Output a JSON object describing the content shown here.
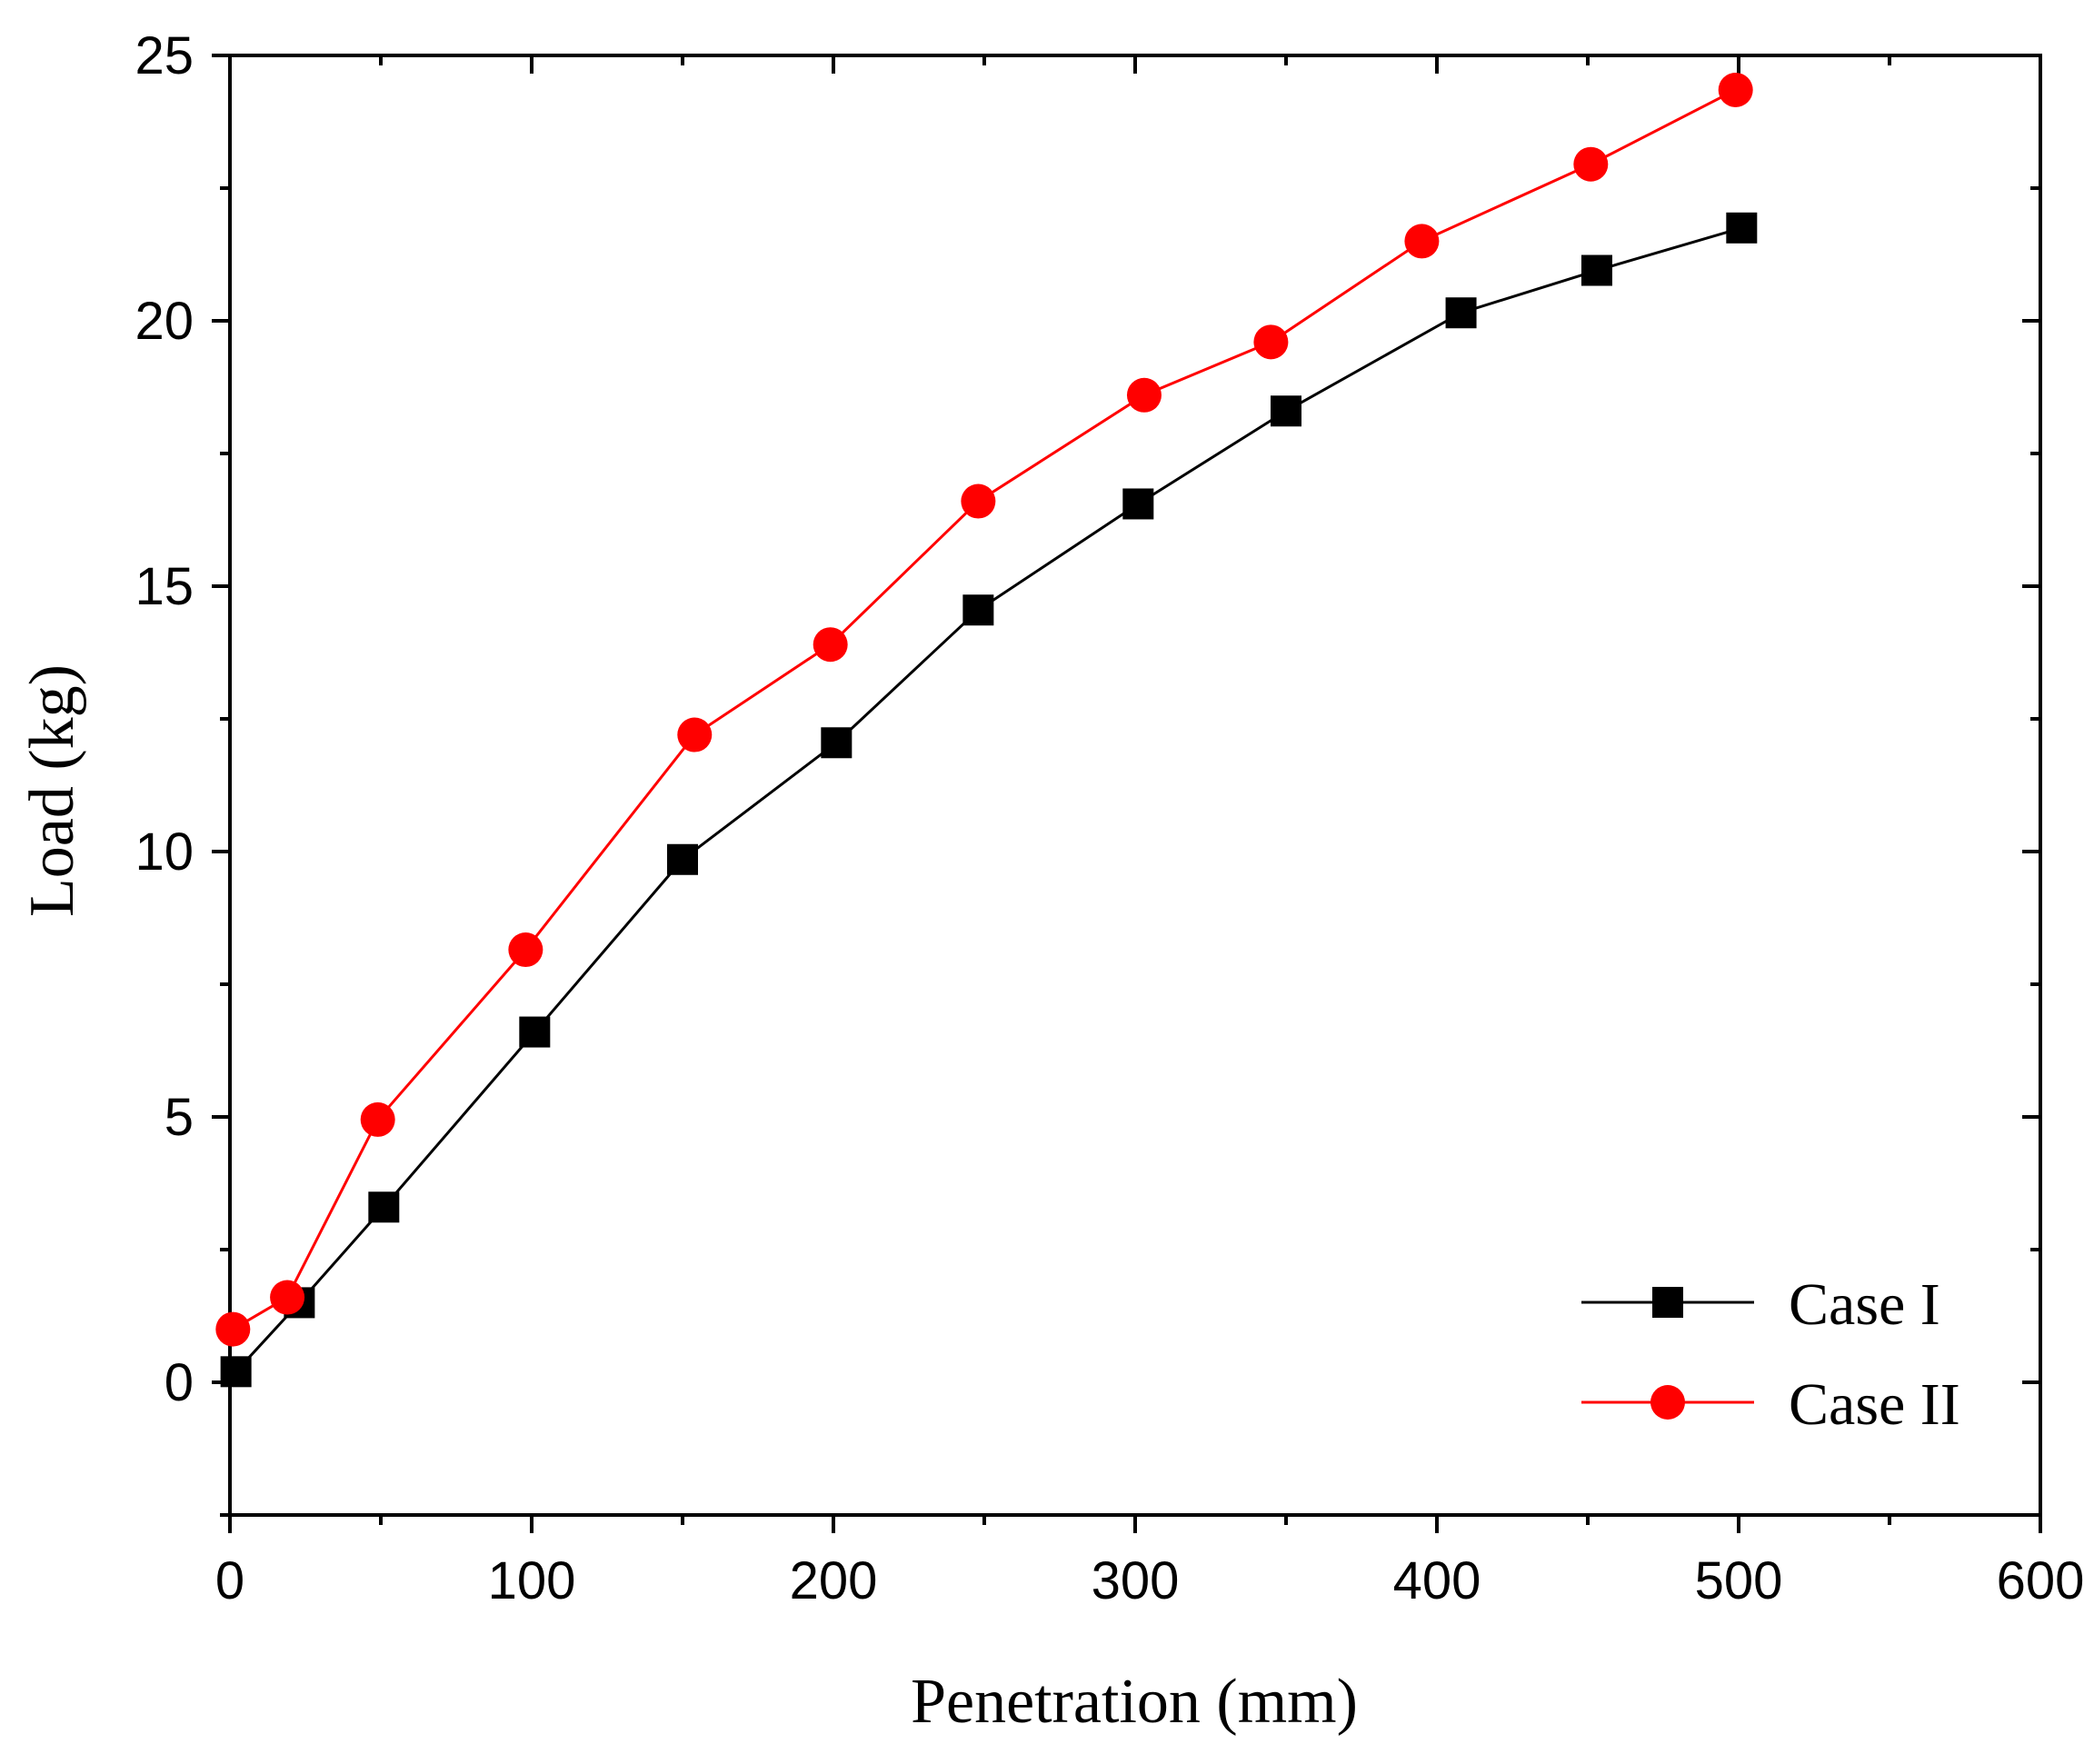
{
  "chart_data": {
    "type": "line",
    "title": "",
    "xlabel": "Penetration (mm)",
    "ylabel": "Load (kg)",
    "xlim": [
      0,
      600
    ],
    "ylim": [
      -2.5,
      25
    ],
    "xticks": [
      0,
      100,
      200,
      300,
      400,
      500,
      600
    ],
    "yticks": [
      0,
      5,
      10,
      15,
      20,
      25
    ],
    "grid": false,
    "legend_position": "bottom-right",
    "series": [
      {
        "name": "Case I",
        "color": "#000000",
        "marker": "square",
        "x": [
          2,
          23,
          51,
          101,
          150,
          201,
          248,
          301,
          350,
          408,
          453,
          501
        ],
        "y": [
          0.2,
          1.5,
          3.3,
          6.6,
          9.85,
          12.05,
          14.55,
          16.55,
          18.3,
          20.15,
          20.95,
          21.75
        ]
      },
      {
        "name": "Case II",
        "color": "#ff0000",
        "marker": "circle",
        "x": [
          1,
          19,
          49,
          98,
          154,
          199,
          248,
          303,
          345,
          395,
          451,
          499
        ],
        "y": [
          1.0,
          1.6,
          4.95,
          8.15,
          12.2,
          13.9,
          16.6,
          18.6,
          19.6,
          21.5,
          22.95,
          24.35
        ]
      }
    ]
  }
}
